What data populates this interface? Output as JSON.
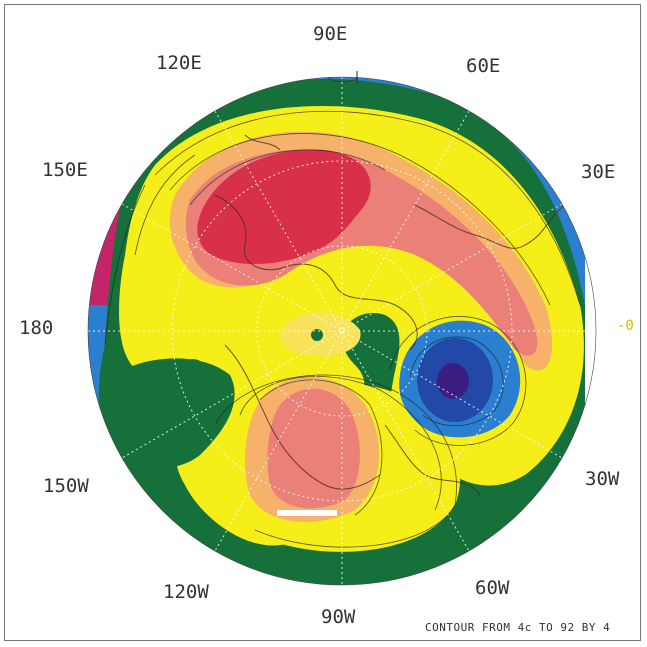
{
  "map": {
    "longitude_labels": {
      "e90": "90E",
      "e120": "120E",
      "e60": "60E",
      "e150": "150E",
      "e30": "30E",
      "d180": "180",
      "zero": "-0",
      "w150": "150W",
      "w30": "30W",
      "w120": "120W",
      "w60": "60W",
      "w90": "90W"
    },
    "footer_text": "CONTOUR FROM 4c TO 92 BY 4",
    "colors": {
      "magenta": "#c42468",
      "blue": "#2a7fd0",
      "green": "#16703a",
      "yellow": "#f6ee18",
      "light_yellow": "#f8e35a",
      "orange": "#f6b16a",
      "salmon": "#ea8078",
      "red": "#d8304a",
      "purple": "#3a1e82",
      "deep_blue": "#2248a8"
    },
    "icons": [
      "polar-projection-map",
      "contour-lines",
      "coastline-overlay"
    ]
  }
}
